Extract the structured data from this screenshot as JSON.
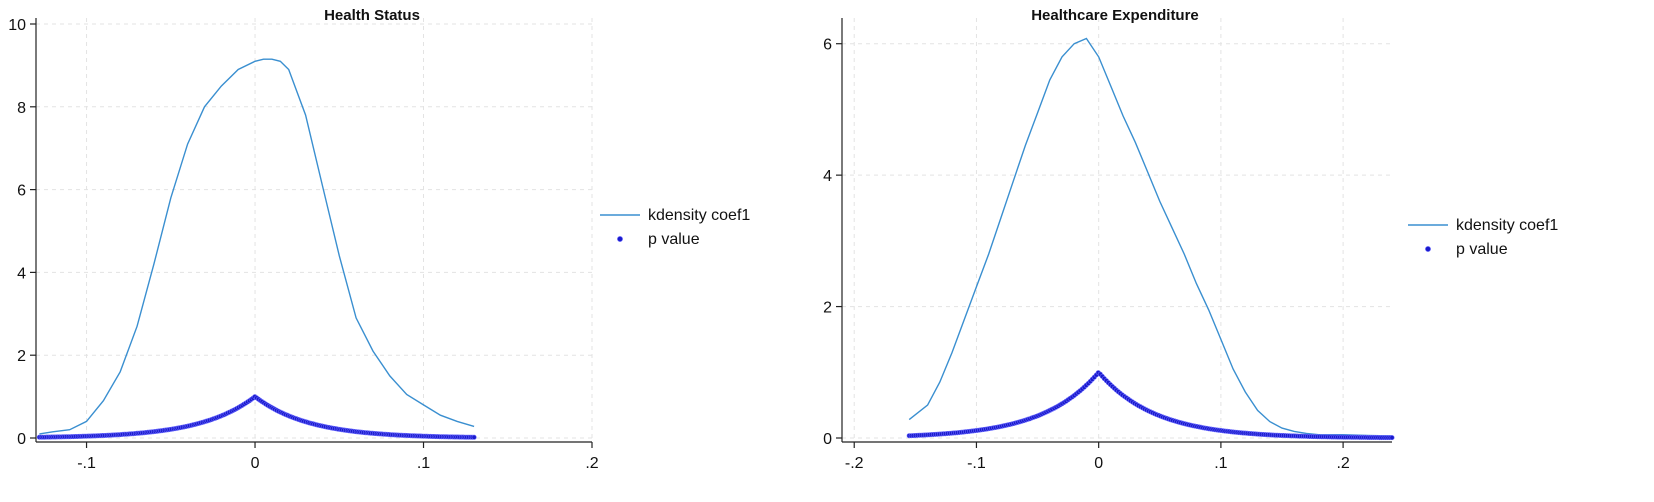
{
  "chart_data": [
    {
      "type": "line",
      "title": "Health Status",
      "xlabel": "",
      "ylabel": "",
      "xlim": [
        -0.13,
        0.2
      ],
      "ylim": [
        0,
        10
      ],
      "xticks": [
        -0.1,
        0,
        0.1,
        0.2
      ],
      "xtick_labels": [
        "-.1",
        "0",
        ".1",
        ".2"
      ],
      "yticks": [
        0,
        2,
        4,
        6,
        8,
        10
      ],
      "ytick_labels": [
        "0",
        "2",
        "4",
        "6",
        "8",
        "10"
      ],
      "grid": true,
      "legend_position": "right",
      "series": [
        {
          "name": "kdensity coef1",
          "kind": "line",
          "color": "#3a8fd0",
          "x": [
            -0.128,
            -0.12,
            -0.11,
            -0.1,
            -0.09,
            -0.08,
            -0.07,
            -0.06,
            -0.05,
            -0.04,
            -0.03,
            -0.02,
            -0.01,
            0.0,
            0.005,
            0.01,
            0.015,
            0.02,
            0.03,
            0.04,
            0.05,
            0.06,
            0.07,
            0.08,
            0.09,
            0.1,
            0.11,
            0.12,
            0.13
          ],
          "y": [
            0.1,
            0.15,
            0.2,
            0.4,
            0.9,
            1.6,
            2.7,
            4.2,
            5.8,
            7.1,
            8.0,
            8.5,
            8.9,
            9.1,
            9.15,
            9.15,
            9.1,
            8.9,
            7.8,
            6.1,
            4.4,
            2.9,
            2.1,
            1.5,
            1.05,
            0.8,
            0.55,
            0.4,
            0.28
          ]
        },
        {
          "name": "p value",
          "kind": "scatter",
          "color": "#1a1acc",
          "peak_x": 0.0,
          "peak_y": 1.0,
          "x_range": [
            -0.128,
            0.13
          ],
          "spread": 0.032
        }
      ]
    },
    {
      "type": "line",
      "title": "Healthcare Expenditure",
      "xlabel": "",
      "ylabel": "",
      "xlim": [
        -0.21,
        0.24
      ],
      "ylim": [
        0,
        6.3
      ],
      "xticks": [
        -0.2,
        -0.1,
        0,
        0.1,
        0.2
      ],
      "xtick_labels": [
        "-.2",
        "-.1",
        "0",
        ".1",
        ".2"
      ],
      "yticks": [
        0,
        2,
        4,
        6
      ],
      "ytick_labels": [
        "0",
        "2",
        "4",
        "6"
      ],
      "grid": true,
      "legend_position": "right",
      "series": [
        {
          "name": "kdensity coef1",
          "kind": "line",
          "color": "#3a8fd0",
          "x": [
            -0.155,
            -0.14,
            -0.13,
            -0.12,
            -0.11,
            -0.1,
            -0.09,
            -0.08,
            -0.07,
            -0.06,
            -0.05,
            -0.04,
            -0.03,
            -0.02,
            -0.01,
            0.0,
            0.01,
            0.02,
            0.03,
            0.04,
            0.05,
            0.06,
            0.07,
            0.08,
            0.09,
            0.1,
            0.11,
            0.12,
            0.13,
            0.14,
            0.15,
            0.16,
            0.17,
            0.18,
            0.2,
            0.22,
            0.24
          ],
          "y": [
            0.28,
            0.5,
            0.85,
            1.3,
            1.8,
            2.3,
            2.8,
            3.35,
            3.9,
            4.45,
            4.95,
            5.45,
            5.8,
            6.0,
            6.08,
            5.8,
            5.35,
            4.9,
            4.5,
            4.05,
            3.6,
            3.2,
            2.8,
            2.35,
            1.95,
            1.5,
            1.05,
            0.7,
            0.42,
            0.25,
            0.15,
            0.1,
            0.07,
            0.05,
            0.05,
            0.04,
            0.03
          ]
        },
        {
          "name": "p value",
          "kind": "scatter",
          "color": "#1a1acc",
          "peak_x": 0.0,
          "peak_y": 1.0,
          "x_range": [
            -0.155,
            0.24
          ],
          "spread": 0.046
        }
      ]
    }
  ]
}
